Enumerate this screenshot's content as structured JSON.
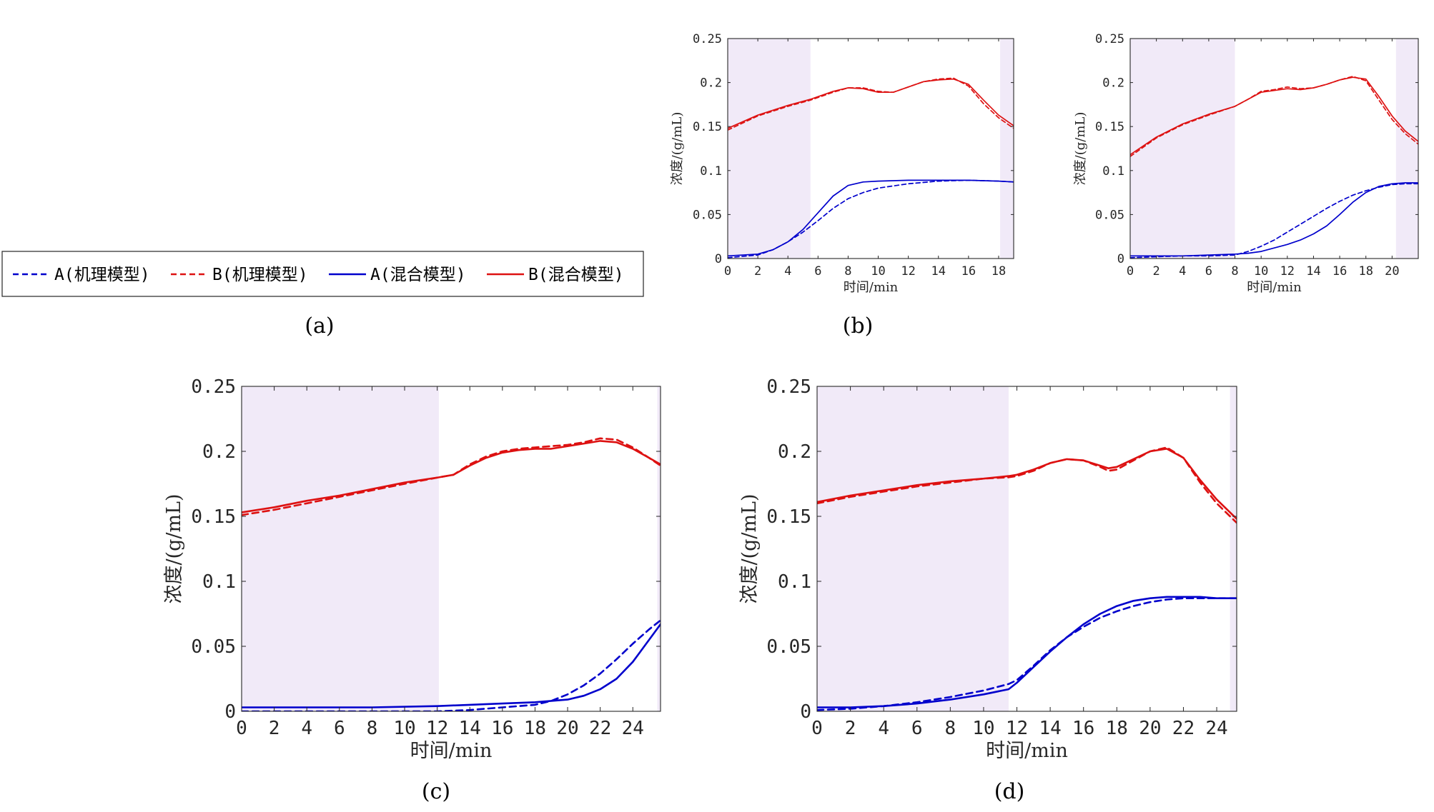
{
  "colors": {
    "A": "#0000cc",
    "B": "#dd1111",
    "shade": "#f1eaf8",
    "axis": "#262626"
  },
  "legend": {
    "entries": [
      {
        "label": "A(机理模型)",
        "style": "dashed",
        "color": "#0000cc"
      },
      {
        "label": "B(机理模型)",
        "style": "dashed",
        "color": "#dd1111"
      },
      {
        "label": "A(混合模型)",
        "style": "solid",
        "color": "#0000cc"
      },
      {
        "label": "B(混合模型)",
        "style": "solid",
        "color": "#dd1111"
      }
    ]
  },
  "captions": {
    "a": "(a)",
    "b1": "(b)",
    "c": "(c)",
    "d": "(d)"
  },
  "chart_data": [
    {
      "id": "b1",
      "type": "line",
      "xlabel": "时间/min",
      "ylabel": "浓度/(g/mL)",
      "xlim": [
        0,
        19
      ],
      "ylim": [
        0,
        0.25
      ],
      "xticks": [
        0,
        2,
        4,
        6,
        8,
        10,
        12,
        14,
        16,
        18
      ],
      "yticks": [
        "0",
        "0.05",
        "0.1",
        "0.15",
        "0.2",
        "0.25"
      ],
      "shaded": [
        [
          0,
          5.5
        ],
        [
          18.1,
          19
        ]
      ],
      "series": [
        {
          "key": "B_mech",
          "x": [
            0,
            2,
            4,
            5.5,
            7,
            8,
            9,
            10,
            11,
            12,
            13,
            14,
            15,
            16,
            17,
            18,
            19
          ],
          "y": [
            0.146,
            0.162,
            0.173,
            0.18,
            0.189,
            0.194,
            0.194,
            0.19,
            0.189,
            0.195,
            0.201,
            0.204,
            0.205,
            0.196,
            0.176,
            0.16,
            0.148
          ]
        },
        {
          "key": "B_hyb",
          "x": [
            0,
            2,
            4,
            5.5,
            7,
            8,
            9,
            10,
            11,
            12,
            13,
            14,
            15,
            16,
            17,
            18,
            19
          ],
          "y": [
            0.148,
            0.163,
            0.174,
            0.181,
            0.19,
            0.194,
            0.193,
            0.189,
            0.189,
            0.195,
            0.201,
            0.203,
            0.204,
            0.198,
            0.18,
            0.163,
            0.151
          ]
        },
        {
          "key": "A_mech",
          "x": [
            0,
            2,
            3,
            4,
            5,
            6,
            7,
            8,
            9,
            10,
            12,
            14,
            16,
            18,
            19
          ],
          "y": [
            0.001,
            0.004,
            0.01,
            0.019,
            0.03,
            0.043,
            0.057,
            0.068,
            0.075,
            0.08,
            0.085,
            0.088,
            0.089,
            0.088,
            0.087
          ]
        },
        {
          "key": "A_hyb",
          "x": [
            0,
            2,
            3,
            4,
            5,
            6,
            7,
            8,
            9,
            10,
            12,
            14,
            16,
            18,
            19
          ],
          "y": [
            0.003,
            0.005,
            0.01,
            0.019,
            0.033,
            0.052,
            0.071,
            0.083,
            0.087,
            0.088,
            0.089,
            0.089,
            0.089,
            0.088,
            0.087
          ]
        }
      ]
    },
    {
      "id": "b2",
      "type": "line",
      "xlabel": "时间/min",
      "ylabel": "浓度/(g/mL)",
      "xlim": [
        0,
        22
      ],
      "ylim": [
        0,
        0.25
      ],
      "xticks": [
        0,
        2,
        4,
        6,
        8,
        10,
        12,
        14,
        16,
        18,
        20
      ],
      "yticks": [
        "0",
        "0.05",
        "0.1",
        "0.15",
        "0.2",
        "0.25"
      ],
      "shaded": [
        [
          0,
          8
        ],
        [
          20.3,
          22
        ]
      ],
      "series": [
        {
          "key": "B_mech",
          "x": [
            0,
            2,
            4,
            6,
            8,
            9,
            10,
            11,
            12,
            13,
            14,
            15,
            16,
            17,
            18,
            19,
            20,
            21,
            22
          ],
          "y": [
            0.116,
            0.137,
            0.152,
            0.163,
            0.173,
            0.181,
            0.19,
            0.192,
            0.195,
            0.193,
            0.194,
            0.198,
            0.203,
            0.207,
            0.202,
            0.18,
            0.158,
            0.142,
            0.13
          ]
        },
        {
          "key": "B_hyb",
          "x": [
            0,
            2,
            4,
            6,
            8,
            9,
            10,
            11,
            12,
            13,
            14,
            15,
            16,
            17,
            18,
            19,
            20,
            21,
            22
          ],
          "y": [
            0.118,
            0.138,
            0.153,
            0.164,
            0.173,
            0.181,
            0.189,
            0.191,
            0.193,
            0.192,
            0.194,
            0.198,
            0.203,
            0.206,
            0.204,
            0.184,
            0.162,
            0.145,
            0.133
          ]
        },
        {
          "key": "A_mech",
          "x": [
            0,
            2,
            4,
            6,
            8,
            9,
            10,
            11,
            12,
            13,
            14,
            15,
            16,
            17,
            18,
            19,
            20,
            21,
            22
          ],
          "y": [
            0.001,
            0.002,
            0.003,
            0.003,
            0.004,
            0.008,
            0.014,
            0.021,
            0.03,
            0.039,
            0.048,
            0.057,
            0.065,
            0.072,
            0.077,
            0.081,
            0.084,
            0.085,
            0.085
          ]
        },
        {
          "key": "A_hyb",
          "x": [
            0,
            2,
            4,
            6,
            8,
            9,
            10,
            11,
            12,
            13,
            14,
            15,
            16,
            17,
            18,
            19,
            20,
            21,
            22
          ],
          "y": [
            0.003,
            0.003,
            0.003,
            0.004,
            0.005,
            0.006,
            0.008,
            0.012,
            0.016,
            0.021,
            0.028,
            0.037,
            0.05,
            0.064,
            0.075,
            0.082,
            0.085,
            0.086,
            0.086
          ]
        }
      ]
    },
    {
      "id": "c",
      "type": "line",
      "xlabel": "时间/min",
      "ylabel": "浓度/(g/mL)",
      "xlim": [
        0,
        25.7
      ],
      "ylim": [
        0,
        0.25
      ],
      "xticks": [
        0,
        2,
        4,
        6,
        8,
        10,
        12,
        14,
        16,
        18,
        20,
        22,
        24
      ],
      "yticks": [
        "0",
        "0.05",
        "0.1",
        "0.15",
        "0.2",
        "0.25"
      ],
      "shaded": [
        [
          0,
          12.1
        ],
        [
          25.5,
          25.7
        ]
      ],
      "series": [
        {
          "key": "B_mech",
          "x": [
            0,
            2,
            4,
            6,
            8,
            10,
            12.1,
            13,
            14,
            15,
            16,
            17,
            18,
            19,
            20,
            21,
            22,
            23,
            24,
            25,
            25.7
          ],
          "y": [
            0.151,
            0.155,
            0.16,
            0.165,
            0.17,
            0.175,
            0.18,
            0.182,
            0.19,
            0.196,
            0.2,
            0.202,
            0.203,
            0.204,
            0.205,
            0.207,
            0.21,
            0.209,
            0.203,
            0.195,
            0.189
          ]
        },
        {
          "key": "B_hyb",
          "x": [
            0,
            2,
            4,
            6,
            8,
            10,
            12.1,
            13,
            14,
            15,
            16,
            17,
            18,
            19,
            20,
            21,
            22,
            23,
            24,
            25,
            25.7
          ],
          "y": [
            0.153,
            0.157,
            0.162,
            0.166,
            0.171,
            0.176,
            0.18,
            0.182,
            0.189,
            0.195,
            0.199,
            0.201,
            0.202,
            0.202,
            0.204,
            0.206,
            0.208,
            0.207,
            0.202,
            0.195,
            0.19
          ]
        },
        {
          "key": "A_mech",
          "x": [
            0,
            4,
            8,
            12,
            14,
            16,
            18,
            19,
            20,
            21,
            22,
            23,
            24,
            25,
            25.7
          ],
          "y": [
            0.0,
            0.0,
            0.0,
            0.0,
            0.001,
            0.003,
            0.005,
            0.008,
            0.013,
            0.02,
            0.029,
            0.04,
            0.052,
            0.063,
            0.07
          ]
        },
        {
          "key": "A_hyb",
          "x": [
            0,
            4,
            8,
            12,
            14,
            16,
            18,
            19,
            20,
            21,
            22,
            23,
            24,
            25,
            25.7
          ],
          "y": [
            0.003,
            0.003,
            0.003,
            0.004,
            0.005,
            0.006,
            0.007,
            0.008,
            0.009,
            0.012,
            0.017,
            0.025,
            0.038,
            0.055,
            0.067
          ]
        }
      ]
    },
    {
      "id": "d",
      "type": "line",
      "xlabel": "时间/min",
      "ylabel": "浓度/(g/mL)",
      "xlim": [
        0,
        25.2
      ],
      "ylim": [
        0,
        0.25
      ],
      "xticks": [
        0,
        2,
        4,
        6,
        8,
        10,
        12,
        14,
        16,
        18,
        20,
        22,
        24
      ],
      "yticks": [
        "0",
        "0.05",
        "0.1",
        "0.15",
        "0.2",
        "0.25"
      ],
      "shaded": [
        [
          0,
          11.5
        ],
        [
          24.8,
          25.2
        ]
      ],
      "series": [
        {
          "key": "B_mech",
          "x": [
            0,
            2,
            4,
            6,
            8,
            10,
            11.5,
            12,
            13,
            14,
            15,
            16,
            17,
            17.5,
            18,
            19,
            20,
            21,
            22,
            23,
            24,
            25.2
          ],
          "y": [
            0.16,
            0.165,
            0.169,
            0.173,
            0.176,
            0.179,
            0.18,
            0.181,
            0.185,
            0.191,
            0.194,
            0.193,
            0.188,
            0.185,
            0.186,
            0.193,
            0.2,
            0.203,
            0.195,
            0.176,
            0.16,
            0.145
          ]
        },
        {
          "key": "B_hyb",
          "x": [
            0,
            2,
            4,
            6,
            8,
            10,
            11.5,
            12,
            13,
            14,
            15,
            16,
            17,
            17.5,
            18,
            19,
            20,
            21,
            22,
            23,
            24,
            25.2
          ],
          "y": [
            0.161,
            0.166,
            0.17,
            0.174,
            0.177,
            0.179,
            0.181,
            0.182,
            0.186,
            0.191,
            0.194,
            0.193,
            0.189,
            0.187,
            0.188,
            0.194,
            0.2,
            0.202,
            0.195,
            0.178,
            0.163,
            0.148
          ]
        },
        {
          "key": "A_mech",
          "x": [
            0,
            2,
            4,
            6,
            8,
            10,
            11.5,
            12,
            13,
            14,
            15,
            16,
            17,
            18,
            19,
            20,
            21,
            22,
            23,
            24,
            25.2
          ],
          "y": [
            0.001,
            0.002,
            0.004,
            0.007,
            0.011,
            0.016,
            0.021,
            0.024,
            0.035,
            0.047,
            0.057,
            0.065,
            0.072,
            0.077,
            0.081,
            0.084,
            0.086,
            0.087,
            0.087,
            0.087,
            0.087
          ]
        },
        {
          "key": "A_hyb",
          "x": [
            0,
            2,
            4,
            6,
            8,
            10,
            11.5,
            12,
            13,
            14,
            15,
            16,
            17,
            18,
            19,
            20,
            21,
            22,
            23,
            24,
            25.2
          ],
          "y": [
            0.003,
            0.003,
            0.004,
            0.006,
            0.009,
            0.013,
            0.017,
            0.022,
            0.034,
            0.046,
            0.057,
            0.067,
            0.075,
            0.081,
            0.085,
            0.087,
            0.088,
            0.088,
            0.088,
            0.087,
            0.087
          ]
        }
      ]
    }
  ]
}
